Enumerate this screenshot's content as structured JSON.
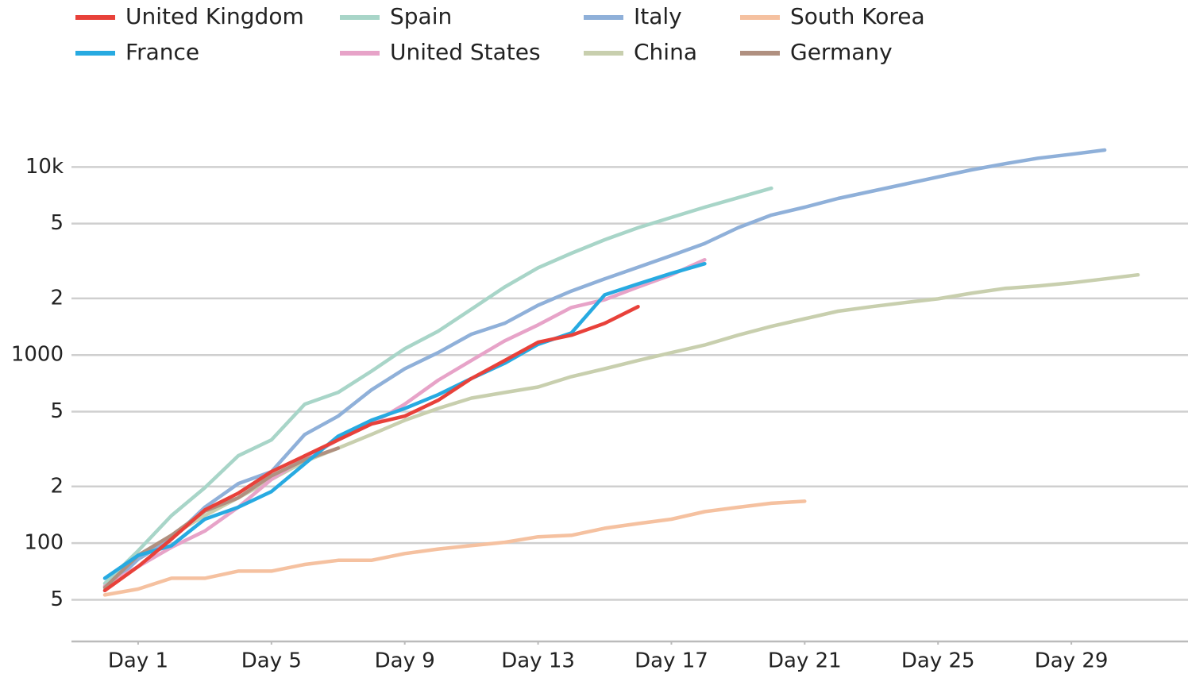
{
  "chart_data": {
    "type": "line",
    "log_scale": true,
    "grid": true,
    "xlim": [
      -1,
      32.5
    ],
    "ylim": [
      30,
      20000
    ],
    "xticks": [
      {
        "value": 1,
        "label": "Day 1"
      },
      {
        "value": 5,
        "label": "Day 5"
      },
      {
        "value": 9,
        "label": "Day 9"
      },
      {
        "value": 13,
        "label": "Day 13"
      },
      {
        "value": 17,
        "label": "Day 17"
      },
      {
        "value": 21,
        "label": "Day 21"
      },
      {
        "value": 25,
        "label": "Day 25"
      },
      {
        "value": 29,
        "label": "Day 29"
      }
    ],
    "yticks": [
      {
        "value": 10000,
        "label": "10k"
      },
      {
        "value": 5000,
        "label": "5"
      },
      {
        "value": 2000,
        "label": "2"
      },
      1000,
      {
        "value": 500,
        "label": "5"
      },
      {
        "value": 200,
        "label": "2"
      },
      100,
      {
        "value": 50,
        "label": "5"
      }
    ],
    "series": [
      {
        "name": "United Kingdom",
        "color": "#e8413a",
        "x": [
          0,
          1,
          2,
          3,
          4,
          5,
          6,
          7,
          8,
          9,
          10,
          11,
          12,
          13,
          14,
          15,
          16
        ],
        "values": [
          56,
          75,
          105,
          150,
          184,
          240,
          291,
          354,
          430,
          473,
          575,
          750,
          935,
          1170,
          1275,
          1475,
          1808
        ]
      },
      {
        "name": "Spain",
        "color": "#a8d5c8",
        "x": [
          0,
          1,
          2,
          3,
          4,
          5,
          6,
          7,
          8,
          9,
          10,
          11,
          12,
          13,
          14,
          15,
          16,
          17,
          18,
          19,
          20
        ],
        "values": [
          61,
          91,
          140,
          197,
          291,
          354,
          548,
          633,
          820,
          1081,
          1339,
          1752,
          2300,
          2910,
          3478,
          4100,
          4750,
          5390,
          6110,
          6860,
          7710
        ]
      },
      {
        "name": "Italy",
        "color": "#8fb0d9",
        "x": [
          0,
          1,
          2,
          3,
          4,
          5,
          6,
          7,
          8,
          9,
          10,
          11,
          12,
          13,
          14,
          15,
          16,
          17,
          18,
          19,
          20,
          21,
          22,
          23,
          24,
          25,
          26,
          27,
          28,
          29,
          30
        ],
        "values": [
          56,
          82,
          105,
          155,
          207,
          240,
          378,
          473,
          652,
          845,
          1030,
          1290,
          1475,
          1840,
          2190,
          2540,
          2930,
          3380,
          3920,
          4750,
          5550,
          6110,
          6800,
          7420,
          8100,
          8850,
          9650,
          10400,
          11130,
          11680,
          12300
        ]
      },
      {
        "name": "South Korea",
        "color": "#f5c1a0",
        "x": [
          0,
          1,
          2,
          3,
          4,
          5,
          6,
          7,
          8,
          9,
          10,
          11,
          12,
          13,
          14,
          15,
          16,
          17,
          18,
          19,
          20,
          21
        ],
        "values": [
          53,
          57,
          65,
          65,
          71,
          71,
          77,
          81,
          81,
          88,
          93,
          97,
          101,
          108,
          110,
          120,
          127,
          134,
          147,
          155,
          163,
          167
        ]
      },
      {
        "name": "France",
        "color": "#27aae1",
        "x": [
          0,
          1,
          2,
          3,
          4,
          5,
          6,
          7,
          8,
          9,
          10,
          11,
          12,
          13,
          14,
          15,
          16,
          17,
          18
        ],
        "values": [
          65,
          86,
          97,
          134,
          155,
          188,
          264,
          370,
          450,
          520,
          615,
          750,
          905,
          1140,
          1310,
          2090,
          2390,
          2720,
          3060
        ]
      },
      {
        "name": "United States",
        "color": "#e7a3c8",
        "x": [
          0,
          1,
          2,
          3,
          4,
          5,
          6,
          7,
          8,
          9,
          10,
          11,
          12,
          13,
          14,
          15,
          16,
          17,
          18
        ],
        "values": [
          59,
          75,
          95,
          116,
          155,
          218,
          283,
          354,
          430,
          548,
          734,
          935,
          1190,
          1446,
          1790,
          1970,
          2300,
          2670,
          3210
        ]
      },
      {
        "name": "China",
        "color": "#c8cfae",
        "x": [
          0,
          1,
          2,
          3,
          4,
          5,
          6,
          7,
          8,
          9,
          10,
          11,
          12,
          13,
          14,
          15,
          16,
          17,
          18,
          19,
          20,
          21,
          22,
          23,
          24,
          25,
          26,
          27,
          28,
          29,
          30,
          31
        ],
        "values": [
          59,
          86,
          110,
          140,
          174,
          218,
          272,
          320,
          378,
          450,
          520,
          590,
          632,
          676,
          768,
          845,
          935,
          1030,
          1130,
          1275,
          1420,
          1560,
          1710,
          1808,
          1900,
          1990,
          2130,
          2260,
          2330,
          2420,
          2540,
          2670
        ]
      },
      {
        "name": "Germany",
        "color": "#b09080",
        "x": [
          0,
          1,
          2,
          3,
          4,
          5,
          6,
          7
        ],
        "values": [
          58,
          86,
          110,
          148,
          174,
          228,
          277,
          320
        ]
      }
    ]
  }
}
